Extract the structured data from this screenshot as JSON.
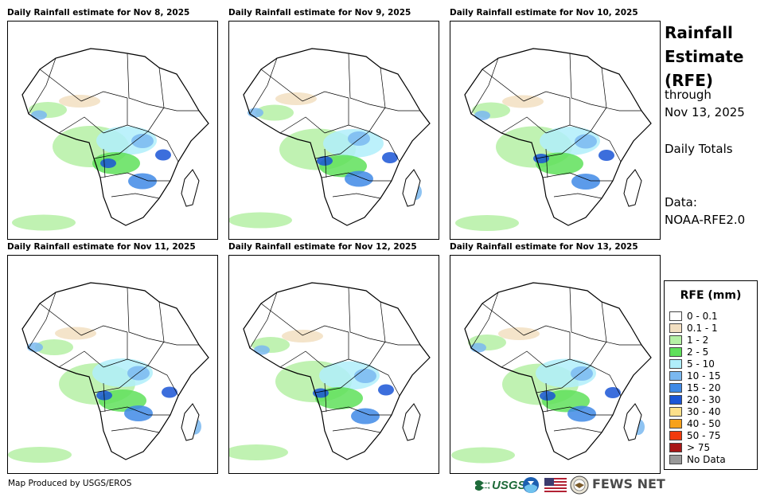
{
  "panels": [
    {
      "title": "Daily Rainfall estimate for Nov 8, 2025"
    },
    {
      "title": "Daily Rainfall estimate for Nov 9, 2025"
    },
    {
      "title": "Daily Rainfall estimate for Nov 10, 2025"
    },
    {
      "title": "Daily Rainfall estimate for Nov 11, 2025"
    },
    {
      "title": "Daily Rainfall estimate for Nov 12, 2025"
    },
    {
      "title": "Daily Rainfall estimate for Nov 13, 2025"
    }
  ],
  "side": {
    "title_line1": "Rainfall",
    "title_line2": "Estimate",
    "title_line3": "(RFE)",
    "through_label": "through",
    "through_date": "Nov 13, 2025",
    "totals_label": "Daily Totals",
    "data_label": "Data:",
    "data_source": "NOAA-RFE2.0"
  },
  "legend": {
    "title": "RFE (mm)",
    "items": [
      {
        "label": "0 - 0.1",
        "color": "#ffffff"
      },
      {
        "label": "0.1 - 1",
        "color": "#f2dfc1"
      },
      {
        "label": "1 - 2",
        "color": "#b5f0a5"
      },
      {
        "label": "2 - 5",
        "color": "#5fe05a"
      },
      {
        "label": "5 - 10",
        "color": "#b0eefa"
      },
      {
        "label": "10 - 15",
        "color": "#7ab8f0"
      },
      {
        "label": "15 - 20",
        "color": "#3f8ae6"
      },
      {
        "label": "20 - 30",
        "color": "#1a55d6"
      },
      {
        "label": "30 - 40",
        "color": "#fde08a"
      },
      {
        "label": "40 - 50",
        "color": "#f7a11a"
      },
      {
        "label": "50 - 75",
        "color": "#f23a0c"
      },
      {
        "label": "> 75",
        "color": "#a81616"
      },
      {
        "label": "No Data",
        "color": "#999999"
      }
    ]
  },
  "footer": {
    "credit": "Map Produced by USGS/EROS",
    "usgs_text": "USGS",
    "fews_text": "FEWS NET"
  }
}
